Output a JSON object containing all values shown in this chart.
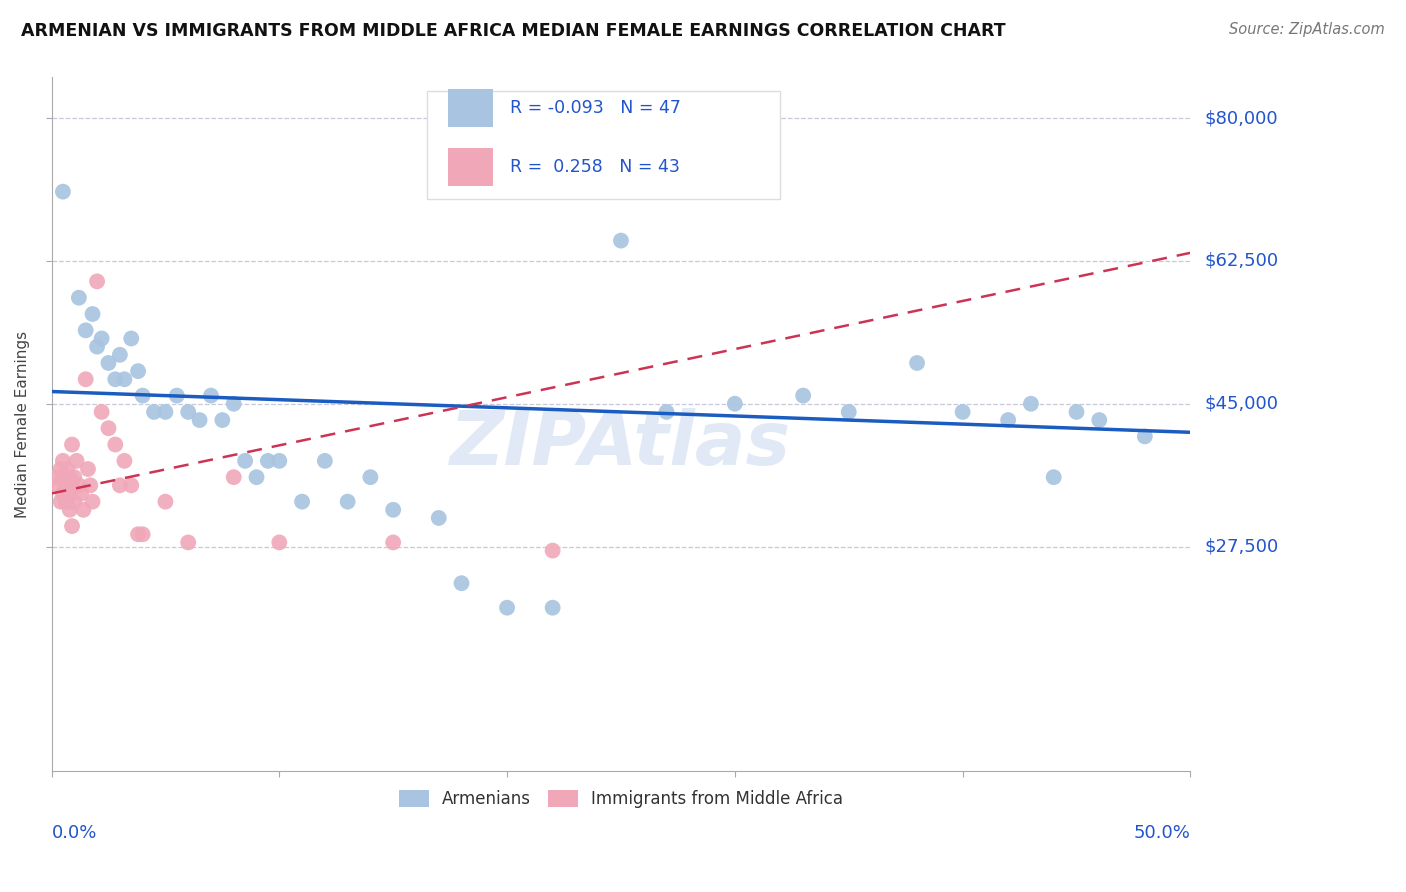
{
  "title": "ARMENIAN VS IMMIGRANTS FROM MIDDLE AFRICA MEDIAN FEMALE EARNINGS CORRELATION CHART",
  "source": "Source: ZipAtlas.com",
  "ylabel": "Median Female Earnings",
  "xlim": [
    0.0,
    0.5
  ],
  "ylim": [
    0,
    85000
  ],
  "background_color": "#ffffff",
  "grid_color": "#c8c8d8",
  "watermark": "ZIPAtlas",
  "armenian_color": "#a8c4e0",
  "middle_africa_color": "#f0a8b8",
  "armenian_line_color": "#1a5cbf",
  "middle_africa_line_color": "#cc3355",
  "armenian_line": [
    [
      0.0,
      46500
    ],
    [
      0.5,
      41500
    ]
  ],
  "middle_africa_line": [
    [
      0.0,
      34000
    ],
    [
      0.5,
      63500
    ]
  ],
  "armenian_scatter": [
    [
      0.005,
      71000
    ],
    [
      0.012,
      58000
    ],
    [
      0.015,
      54000
    ],
    [
      0.018,
      56000
    ],
    [
      0.02,
      52000
    ],
    [
      0.022,
      53000
    ],
    [
      0.025,
      50000
    ],
    [
      0.028,
      48000
    ],
    [
      0.03,
      51000
    ],
    [
      0.032,
      48000
    ],
    [
      0.035,
      53000
    ],
    [
      0.038,
      49000
    ],
    [
      0.04,
      46000
    ],
    [
      0.045,
      44000
    ],
    [
      0.05,
      44000
    ],
    [
      0.055,
      46000
    ],
    [
      0.06,
      44000
    ],
    [
      0.065,
      43000
    ],
    [
      0.07,
      46000
    ],
    [
      0.075,
      43000
    ],
    [
      0.08,
      45000
    ],
    [
      0.085,
      38000
    ],
    [
      0.09,
      36000
    ],
    [
      0.095,
      38000
    ],
    [
      0.1,
      38000
    ],
    [
      0.11,
      33000
    ],
    [
      0.12,
      38000
    ],
    [
      0.13,
      33000
    ],
    [
      0.14,
      36000
    ],
    [
      0.15,
      32000
    ],
    [
      0.17,
      31000
    ],
    [
      0.18,
      23000
    ],
    [
      0.2,
      20000
    ],
    [
      0.22,
      20000
    ],
    [
      0.25,
      65000
    ],
    [
      0.27,
      44000
    ],
    [
      0.3,
      45000
    ],
    [
      0.33,
      46000
    ],
    [
      0.35,
      44000
    ],
    [
      0.38,
      50000
    ],
    [
      0.4,
      44000
    ],
    [
      0.42,
      43000
    ],
    [
      0.43,
      45000
    ],
    [
      0.44,
      36000
    ],
    [
      0.45,
      44000
    ],
    [
      0.46,
      43000
    ],
    [
      0.48,
      41000
    ]
  ],
  "middle_africa_scatter": [
    [
      0.002,
      36000
    ],
    [
      0.003,
      35000
    ],
    [
      0.004,
      37000
    ],
    [
      0.004,
      33000
    ],
    [
      0.005,
      38000
    ],
    [
      0.005,
      34000
    ],
    [
      0.005,
      36000
    ],
    [
      0.006,
      35000
    ],
    [
      0.006,
      33000
    ],
    [
      0.007,
      37000
    ],
    [
      0.007,
      35000
    ],
    [
      0.007,
      33000
    ],
    [
      0.008,
      36000
    ],
    [
      0.008,
      34000
    ],
    [
      0.008,
      32000
    ],
    [
      0.009,
      35000
    ],
    [
      0.009,
      40000
    ],
    [
      0.009,
      30000
    ],
    [
      0.01,
      33000
    ],
    [
      0.01,
      36000
    ],
    [
      0.011,
      38000
    ],
    [
      0.012,
      35000
    ],
    [
      0.013,
      34000
    ],
    [
      0.014,
      32000
    ],
    [
      0.015,
      48000
    ],
    [
      0.016,
      37000
    ],
    [
      0.017,
      35000
    ],
    [
      0.018,
      33000
    ],
    [
      0.02,
      60000
    ],
    [
      0.022,
      44000
    ],
    [
      0.025,
      42000
    ],
    [
      0.028,
      40000
    ],
    [
      0.03,
      35000
    ],
    [
      0.032,
      38000
    ],
    [
      0.035,
      35000
    ],
    [
      0.038,
      29000
    ],
    [
      0.04,
      29000
    ],
    [
      0.05,
      33000
    ],
    [
      0.06,
      28000
    ],
    [
      0.08,
      36000
    ],
    [
      0.1,
      28000
    ],
    [
      0.15,
      28000
    ],
    [
      0.22,
      27000
    ]
  ]
}
